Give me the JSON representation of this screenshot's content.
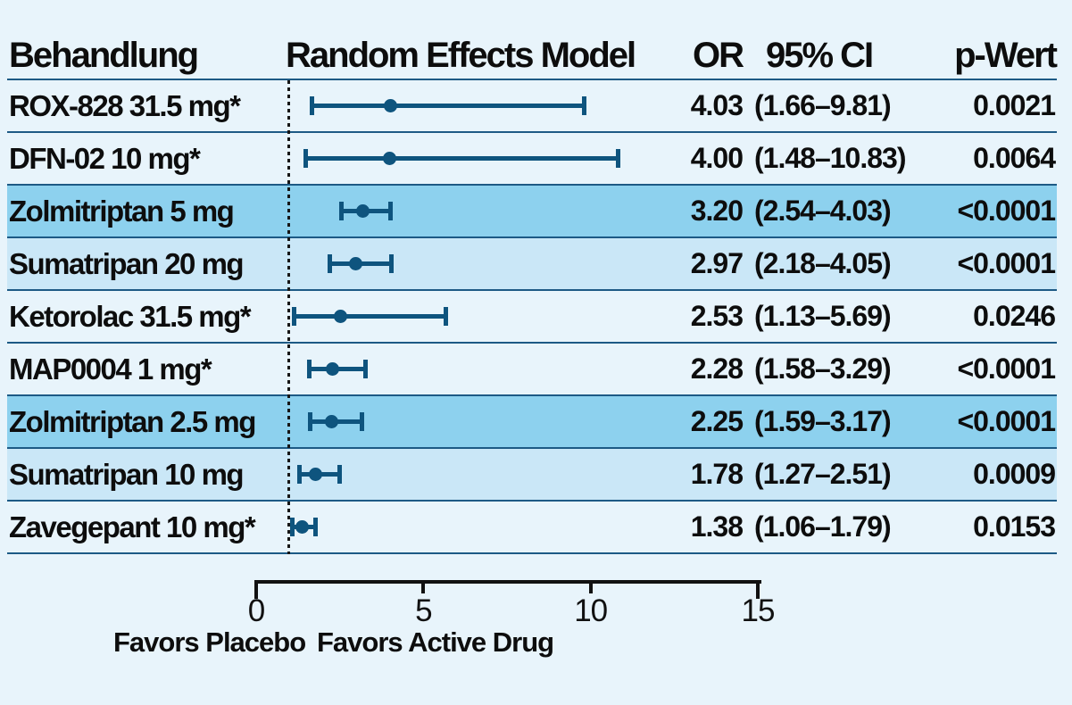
{
  "colors": {
    "background": "#e8f4fb",
    "band_dark": "#8dd1ee",
    "band_medium": "#cae7f7",
    "separator": "#1d5a85",
    "marker_accent": "#0e547e",
    "axis_black": "#111111"
  },
  "chart_data": {
    "type": "forest",
    "header": {
      "treatment": "Behandlung",
      "plot": "Random Effects Model",
      "or": "OR",
      "ci": "95% CI",
      "p": "p-Wert"
    },
    "axis": {
      "min": 0,
      "max": 15,
      "tick_values": [
        0,
        5,
        10,
        15
      ],
      "tick_labels": [
        "0",
        "5",
        "10",
        "15"
      ],
      "reference_value": 1
    },
    "footer": {
      "left": "Favors Placebo",
      "right": "Favors Active Drug"
    },
    "rows": [
      {
        "label": "ROX-828 31.5 mg*",
        "or": 4.03,
        "ci_low": 1.66,
        "ci_high": 9.81,
        "or_text": "4.03",
        "ci_text": "(1.66–9.81)",
        "p_text": "0.0021",
        "shade": "none"
      },
      {
        "label": "DFN-02 10 mg*",
        "or": 4.0,
        "ci_low": 1.48,
        "ci_high": 10.83,
        "or_text": "4.00",
        "ci_text": "(1.48–10.83)",
        "p_text": "0.0064",
        "shade": "none"
      },
      {
        "label": "Zolmitriptan 5 mg",
        "or": 3.2,
        "ci_low": 2.54,
        "ci_high": 4.03,
        "or_text": "3.20",
        "ci_text": "(2.54–4.03)",
        "p_text": "<0.0001",
        "shade": "dark"
      },
      {
        "label": "Sumatripan 20 mg",
        "or": 2.97,
        "ci_low": 2.18,
        "ci_high": 4.05,
        "or_text": "2.97",
        "ci_text": "(2.18–4.05)",
        "p_text": "<0.0001",
        "shade": "medium"
      },
      {
        "label": "Ketorolac 31.5 mg*",
        "or": 2.53,
        "ci_low": 1.13,
        "ci_high": 5.69,
        "or_text": "2.53",
        "ci_text": "(1.13–5.69)",
        "p_text": "0.0246",
        "shade": "none"
      },
      {
        "label": "MAP0004 1 mg*",
        "or": 2.28,
        "ci_low": 1.58,
        "ci_high": 3.29,
        "or_text": "2.28",
        "ci_text": "(1.58–3.29)",
        "p_text": "<0.0001",
        "shade": "none"
      },
      {
        "label": "Zolmitriptan 2.5 mg",
        "or": 2.25,
        "ci_low": 1.59,
        "ci_high": 3.17,
        "or_text": "2.25",
        "ci_text": "(1.59–3.17)",
        "p_text": "<0.0001",
        "shade": "dark"
      },
      {
        "label": "Sumatripan 10 mg",
        "or": 1.78,
        "ci_low": 1.27,
        "ci_high": 2.51,
        "or_text": "1.78",
        "ci_text": "(1.27–2.51)",
        "p_text": "0.0009",
        "shade": "medium"
      },
      {
        "label": "Zavegepant 10 mg*",
        "or": 1.38,
        "ci_low": 1.06,
        "ci_high": 1.79,
        "or_text": "1.38",
        "ci_text": "(1.06–1.79)",
        "p_text": "0.0153",
        "shade": "none"
      }
    ]
  }
}
